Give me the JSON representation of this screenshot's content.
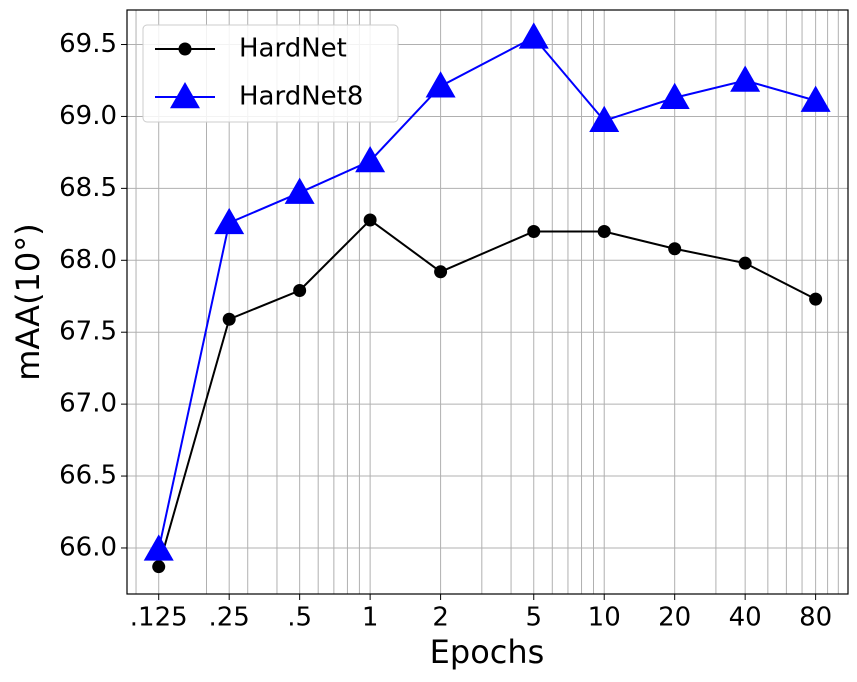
{
  "chart_data": {
    "type": "line",
    "xlabel": "Epochs",
    "ylabel": "mAA(10°)",
    "x": [
      0.125,
      0.25,
      0.5,
      1,
      2,
      5,
      10,
      20,
      40,
      80
    ],
    "series": [
      {
        "name": "HardNet",
        "color": "#000000",
        "marker": "circle",
        "values": [
          65.87,
          67.59,
          67.79,
          68.28,
          67.92,
          68.2,
          68.2,
          68.08,
          67.98,
          67.73
        ]
      },
      {
        "name": "HardNet8",
        "color": "#0000ff",
        "marker": "triangle",
        "values": [
          65.99,
          68.26,
          68.47,
          68.69,
          69.21,
          69.55,
          68.97,
          69.13,
          69.25,
          69.11
        ]
      }
    ],
    "xscale": "log",
    "xlim": [
      0.0915,
      110
    ],
    "ylim": [
      65.68,
      69.74
    ],
    "xticks": [
      {
        "value": 0.125,
        "label": ".125"
      },
      {
        "value": 0.25,
        "label": ".25"
      },
      {
        "value": 0.5,
        "label": ".5"
      },
      1,
      2,
      5,
      10,
      20,
      40,
      80
    ],
    "xminorticks": [
      0.1,
      0.2,
      0.3,
      0.4,
      0.6,
      0.7,
      0.8,
      0.9,
      3,
      4,
      6,
      7,
      8,
      9,
      30,
      50,
      60,
      70,
      90,
      100
    ],
    "yticks": [
      {
        "value": 66,
        "label": "66.0"
      },
      66.5,
      {
        "value": 67,
        "label": "67.0"
      },
      67.5,
      {
        "value": 68,
        "label": "68.0"
      },
      68.5,
      {
        "value": 69,
        "label": "69.0"
      },
      69.5
    ],
    "grid": true,
    "legend": "upper left"
  }
}
